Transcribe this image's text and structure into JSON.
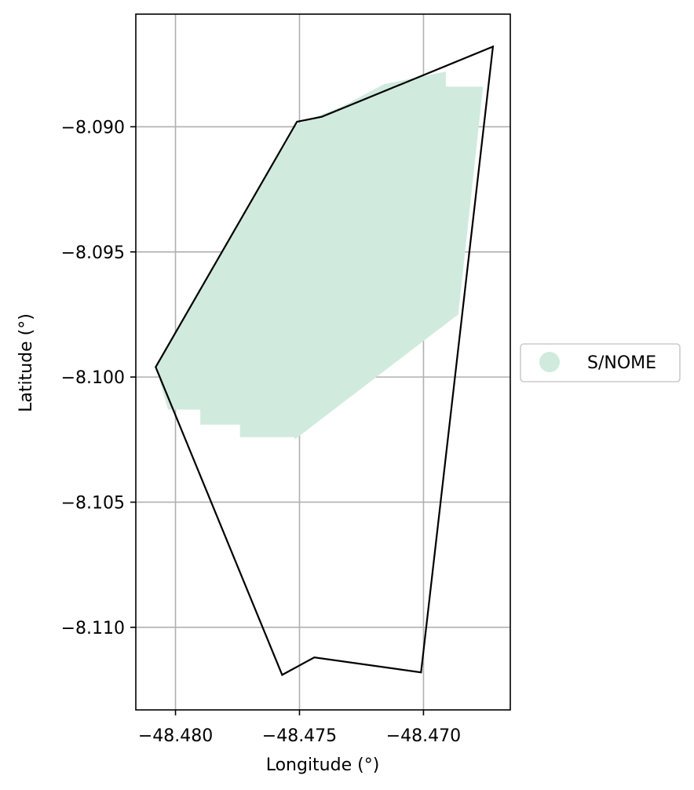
{
  "chart_data": {
    "type": "map",
    "xlabel": "Longitude (°)",
    "ylabel": "Latitude (°)",
    "xlim": [
      -48.4816,
      -48.4665
    ],
    "ylim": [
      -8.1133,
      -8.0855
    ],
    "xticks": [
      -48.48,
      -48.475,
      -48.47
    ],
    "yticks": [
      -8.09,
      -8.095,
      -8.1,
      -8.105,
      -8.11
    ],
    "xtick_labels": [
      "−48.480",
      "−48.475",
      "−48.470"
    ],
    "ytick_labels": [
      "−8.090",
      "−8.095",
      "−8.100",
      "−8.105",
      "−8.110"
    ],
    "grid": true,
    "legend_position": "center-right-outside",
    "legend": [
      {
        "label": "S/NOME",
        "color": "#d0ebde"
      }
    ],
    "layers": [
      {
        "name": "S/NOME",
        "color": "#d0ebde",
        "polygon": [
          [
            -48.4751,
            -8.0899
          ],
          [
            -48.4733,
            -8.0892
          ],
          [
            -48.4716,
            -8.0883
          ],
          [
            -48.4691,
            -8.0878
          ],
          [
            -48.4691,
            -8.0884
          ],
          [
            -48.4676,
            -8.0884
          ],
          [
            -48.4686,
            -8.0975
          ],
          [
            -48.4752,
            -8.1025
          ],
          [
            -48.4752,
            -8.1024
          ],
          [
            -48.4774,
            -8.1024
          ],
          [
            -48.4774,
            -8.1019
          ],
          [
            -48.479,
            -8.1019
          ],
          [
            -48.479,
            -8.1013
          ],
          [
            -48.4803,
            -8.1013
          ],
          [
            -48.4808,
            -8.0996
          ],
          [
            -48.4782,
            -8.0951
          ]
        ]
      }
    ],
    "boundary": {
      "color": "#000000",
      "polygon": [
        [
          -48.4808,
          -8.0996
        ],
        [
          -48.4751,
          -8.0898
        ],
        [
          -48.4741,
          -8.0896
        ],
        [
          -48.4672,
          -8.0868
        ],
        [
          -48.4701,
          -8.1118
        ],
        [
          -48.4744,
          -8.1112
        ],
        [
          -48.4757,
          -8.1119
        ]
      ]
    }
  }
}
